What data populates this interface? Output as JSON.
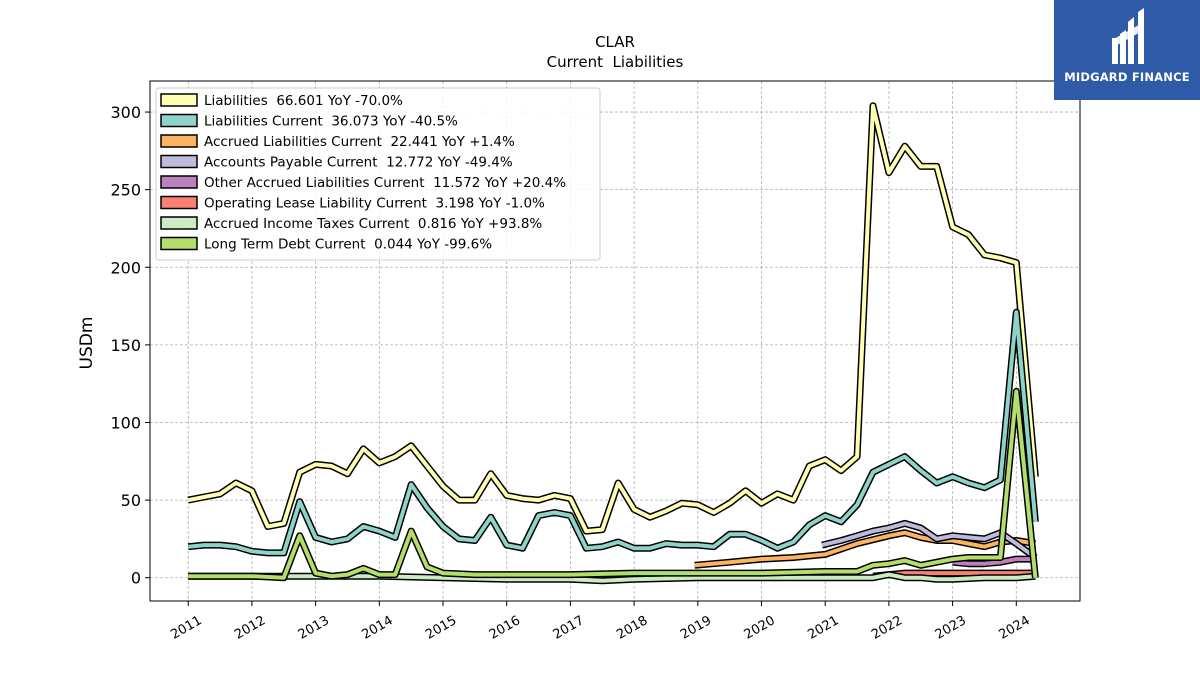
{
  "chart_data": {
    "type": "line",
    "title": "CLAR",
    "subtitle": "Current  Liabilities",
    "ylabel": "USDm",
    "xlabel": "",
    "ylim": [
      -15,
      320
    ],
    "xlim": [
      2010.4,
      2025.0
    ],
    "yticks": [
      0,
      50,
      100,
      150,
      200,
      250,
      300
    ],
    "xticks": [
      2011,
      2012,
      2013,
      2014,
      2015,
      2016,
      2017,
      2018,
      2019,
      2020,
      2021,
      2022,
      2023,
      2024
    ],
    "grid": true,
    "legend_position": "top-left",
    "series": [
      {
        "name": "Liabilities",
        "legend": "Liabilities  66.601 YoY -70.0%",
        "color": "#ffffb3",
        "points": [
          [
            2011.0,
            50
          ],
          [
            2011.25,
            52
          ],
          [
            2011.5,
            54
          ],
          [
            2011.75,
            61
          ],
          [
            2012.0,
            56
          ],
          [
            2012.25,
            33
          ],
          [
            2012.5,
            35
          ],
          [
            2012.75,
            68
          ],
          [
            2013.0,
            73
          ],
          [
            2013.25,
            72
          ],
          [
            2013.5,
            67
          ],
          [
            2013.75,
            83
          ],
          [
            2014.0,
            74
          ],
          [
            2014.25,
            78
          ],
          [
            2014.5,
            85
          ],
          [
            2014.75,
            72
          ],
          [
            2015.0,
            59
          ],
          [
            2015.25,
            50
          ],
          [
            2015.5,
            50
          ],
          [
            2015.75,
            67
          ],
          [
            2016.0,
            53
          ],
          [
            2016.25,
            51
          ],
          [
            2016.5,
            50
          ],
          [
            2016.75,
            53
          ],
          [
            2017.0,
            51
          ],
          [
            2017.25,
            30
          ],
          [
            2017.5,
            31
          ],
          [
            2017.75,
            61
          ],
          [
            2018.0,
            44
          ],
          [
            2018.25,
            39
          ],
          [
            2018.5,
            43
          ],
          [
            2018.75,
            48
          ],
          [
            2019.0,
            47
          ],
          [
            2019.25,
            42
          ],
          [
            2019.5,
            48
          ],
          [
            2019.75,
            56
          ],
          [
            2020.0,
            48
          ],
          [
            2020.25,
            54
          ],
          [
            2020.5,
            50
          ],
          [
            2020.75,
            72
          ],
          [
            2021.0,
            76
          ],
          [
            2021.25,
            69
          ],
          [
            2021.5,
            78
          ],
          [
            2021.75,
            304
          ],
          [
            2022.0,
            261
          ],
          [
            2022.25,
            278
          ],
          [
            2022.5,
            265
          ],
          [
            2022.75,
            265
          ],
          [
            2023.0,
            226
          ],
          [
            2023.25,
            221
          ],
          [
            2023.5,
            208
          ],
          [
            2023.75,
            206
          ],
          [
            2024.0,
            203
          ],
          [
            2024.3,
            65
          ]
        ]
      },
      {
        "name": "Liabilities Current",
        "legend": "Liabilities Current  36.073 YoY -40.5%",
        "color": "#8dd3c7",
        "points": [
          [
            2011.0,
            20
          ],
          [
            2011.25,
            21
          ],
          [
            2011.5,
            21
          ],
          [
            2011.75,
            20
          ],
          [
            2012.0,
            17
          ],
          [
            2012.25,
            16
          ],
          [
            2012.5,
            16
          ],
          [
            2012.75,
            49
          ],
          [
            2013.0,
            26
          ],
          [
            2013.25,
            23
          ],
          [
            2013.5,
            25
          ],
          [
            2013.75,
            33
          ],
          [
            2014.0,
            30
          ],
          [
            2014.25,
            26
          ],
          [
            2014.5,
            60
          ],
          [
            2014.75,
            45
          ],
          [
            2015.0,
            33
          ],
          [
            2015.25,
            25
          ],
          [
            2015.5,
            24
          ],
          [
            2015.75,
            39
          ],
          [
            2016.0,
            21
          ],
          [
            2016.25,
            19
          ],
          [
            2016.5,
            40
          ],
          [
            2016.75,
            42
          ],
          [
            2017.0,
            40
          ],
          [
            2017.25,
            19
          ],
          [
            2017.5,
            20
          ],
          [
            2017.75,
            23
          ],
          [
            2018.0,
            19
          ],
          [
            2018.25,
            19
          ],
          [
            2018.5,
            22
          ],
          [
            2018.75,
            21
          ],
          [
            2019.0,
            21
          ],
          [
            2019.25,
            20
          ],
          [
            2019.5,
            28
          ],
          [
            2019.75,
            28
          ],
          [
            2020.0,
            24
          ],
          [
            2020.25,
            19
          ],
          [
            2020.5,
            23
          ],
          [
            2020.75,
            34
          ],
          [
            2021.0,
            40
          ],
          [
            2021.25,
            36
          ],
          [
            2021.5,
            47
          ],
          [
            2021.75,
            68
          ],
          [
            2022.0,
            73
          ],
          [
            2022.25,
            78
          ],
          [
            2022.5,
            69
          ],
          [
            2022.75,
            61
          ],
          [
            2023.0,
            65
          ],
          [
            2023.25,
            61
          ],
          [
            2023.5,
            58
          ],
          [
            2023.75,
            63
          ],
          [
            2024.0,
            171
          ],
          [
            2024.3,
            36
          ]
        ]
      },
      {
        "name": "Accrued Liabilities Current",
        "legend": "Accrued Liabilities Current  22.441 YoY +1.4%",
        "color": "#fdb462",
        "points": [
          [
            2018.95,
            8
          ],
          [
            2019.5,
            10
          ],
          [
            2020.0,
            12
          ],
          [
            2020.5,
            13
          ],
          [
            2021.0,
            15
          ],
          [
            2021.5,
            22
          ],
          [
            2022.0,
            27
          ],
          [
            2022.25,
            29
          ],
          [
            2022.5,
            26
          ],
          [
            2022.75,
            24
          ],
          [
            2023.0,
            24
          ],
          [
            2023.25,
            22
          ],
          [
            2023.5,
            20
          ],
          [
            2023.75,
            23
          ],
          [
            2024.0,
            24
          ],
          [
            2024.3,
            22
          ]
        ]
      },
      {
        "name": "Accounts Payable Current",
        "legend": "Accounts Payable Current  12.772 YoY -49.4%",
        "color": "#bebada",
        "points": [
          [
            2020.95,
            21
          ],
          [
            2021.25,
            24
          ],
          [
            2021.5,
            27
          ],
          [
            2021.75,
            30
          ],
          [
            2022.0,
            32
          ],
          [
            2022.25,
            35
          ],
          [
            2022.5,
            32
          ],
          [
            2022.75,
            25
          ],
          [
            2023.0,
            27
          ],
          [
            2023.25,
            26
          ],
          [
            2023.5,
            25
          ],
          [
            2023.75,
            29
          ],
          [
            2024.0,
            22
          ],
          [
            2024.3,
            13
          ]
        ]
      },
      {
        "name": "Other Accrued Liabilities Current",
        "legend": "Other Accrued Liabilities Current  11.572 YoY +20.4%",
        "color": "#bc80bd",
        "points": [
          [
            2023.0,
            10
          ],
          [
            2023.25,
            9
          ],
          [
            2023.5,
            9
          ],
          [
            2023.75,
            10
          ],
          [
            2024.0,
            12
          ],
          [
            2024.3,
            12
          ]
        ]
      },
      {
        "name": "Operating Lease Liability Current",
        "legend": "Operating Lease Liability Current  3.198 YoY -1.0%",
        "color": "#fb8072",
        "points": [
          [
            2021.75,
            1
          ],
          [
            2022.0,
            2
          ],
          [
            2022.25,
            3
          ],
          [
            2022.5,
            3
          ],
          [
            2022.75,
            3
          ],
          [
            2023.0,
            3
          ],
          [
            2023.5,
            3
          ],
          [
            2024.0,
            3
          ],
          [
            2024.3,
            3
          ]
        ]
      },
      {
        "name": "Accrued Income Taxes Current",
        "legend": "Accrued Income Taxes Current  0.816 YoY +93.8%",
        "color": "#ccebc5",
        "points": [
          [
            2011.0,
            1
          ],
          [
            2012.0,
            1
          ],
          [
            2013.0,
            1
          ],
          [
            2014.0,
            1
          ],
          [
            2015.0,
            0
          ],
          [
            2016.0,
            -1
          ],
          [
            2017.0,
            -1
          ],
          [
            2017.5,
            -2
          ],
          [
            2018.0,
            -1
          ],
          [
            2019.0,
            0
          ],
          [
            2020.0,
            0
          ],
          [
            2021.0,
            0
          ],
          [
            2021.5,
            0
          ],
          [
            2021.75,
            0
          ],
          [
            2022.0,
            2
          ],
          [
            2022.25,
            0
          ],
          [
            2022.5,
            0
          ],
          [
            2022.75,
            -1
          ],
          [
            2023.0,
            -1
          ],
          [
            2023.5,
            0
          ],
          [
            2024.0,
            0
          ],
          [
            2024.3,
            1
          ]
        ]
      },
      {
        "name": "Long Term Debt Current",
        "legend": "Long Term Debt Current  0.044 YoY -99.6%",
        "color": "#b3de69",
        "points": [
          [
            2011.0,
            1
          ],
          [
            2011.5,
            1
          ],
          [
            2012.0,
            1
          ],
          [
            2012.5,
            0
          ],
          [
            2012.75,
            27
          ],
          [
            2013.0,
            3
          ],
          [
            2013.25,
            1
          ],
          [
            2013.5,
            2
          ],
          [
            2013.75,
            6
          ],
          [
            2014.0,
            2
          ],
          [
            2014.25,
            2
          ],
          [
            2014.5,
            30
          ],
          [
            2014.75,
            7
          ],
          [
            2015.0,
            3
          ],
          [
            2015.5,
            2
          ],
          [
            2016.0,
            2
          ],
          [
            2017.0,
            2
          ],
          [
            2018.0,
            3
          ],
          [
            2019.0,
            3
          ],
          [
            2020.0,
            3
          ],
          [
            2021.0,
            4
          ],
          [
            2021.5,
            4
          ],
          [
            2021.75,
            8
          ],
          [
            2022.0,
            9
          ],
          [
            2022.25,
            11
          ],
          [
            2022.5,
            8
          ],
          [
            2022.75,
            10
          ],
          [
            2023.0,
            12
          ],
          [
            2023.25,
            13
          ],
          [
            2023.5,
            13
          ],
          [
            2023.75,
            13
          ],
          [
            2024.0,
            120
          ],
          [
            2024.3,
            0
          ]
        ]
      }
    ]
  },
  "logo": {
    "text": "MIDGARD FINANCE",
    "color": "#2f5aa8"
  }
}
